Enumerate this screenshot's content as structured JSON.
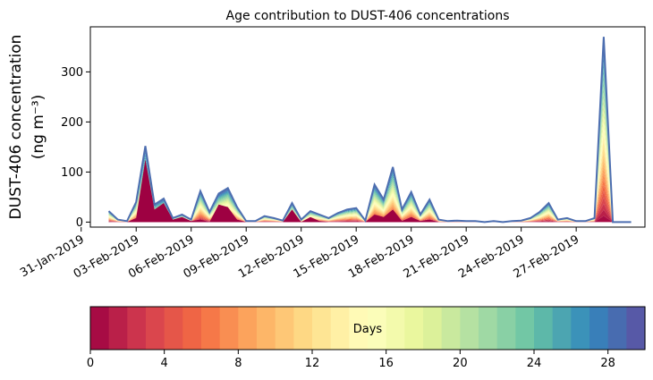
{
  "chart_data": {
    "type": "area",
    "title": "Age contribution to DUST-406 concentrations",
    "ylabel_line1": "DUST-406 concentration",
    "ylabel_line2": "(ng m⁻³)",
    "ylim": [
      -10,
      390
    ],
    "yticks": [
      0,
      100,
      200,
      300
    ],
    "xlim": [
      "2019-01-31T12:00",
      "2019-03-02T18:00"
    ],
    "xticks": [
      {
        "label": "31-Jan-2019",
        "date": "2019-01-31"
      },
      {
        "label": "03-Feb-2019",
        "date": "2019-02-03"
      },
      {
        "label": "06-Feb-2019",
        "date": "2019-02-06"
      },
      {
        "label": "09-Feb-2019",
        "date": "2019-02-09"
      },
      {
        "label": "12-Feb-2019",
        "date": "2019-02-12"
      },
      {
        "label": "15-Feb-2019",
        "date": "2019-02-15"
      },
      {
        "label": "18-Feb-2019",
        "date": "2019-02-18"
      },
      {
        "label": "21-Feb-2019",
        "date": "2019-02-21"
      },
      {
        "label": "24-Feb-2019",
        "date": "2019-02-24"
      },
      {
        "label": "27-Feb-2019",
        "date": "2019-02-27"
      }
    ],
    "x": [
      "2019-02-01T12:00",
      "2019-02-02T00:00",
      "2019-02-02T12:00",
      "2019-02-03T00:00",
      "2019-02-03T12:00",
      "2019-02-04T00:00",
      "2019-02-04T12:00",
      "2019-02-05T00:00",
      "2019-02-05T12:00",
      "2019-02-06T00:00",
      "2019-02-06T12:00",
      "2019-02-07T00:00",
      "2019-02-07T12:00",
      "2019-02-08T00:00",
      "2019-02-08T12:00",
      "2019-02-09T00:00",
      "2019-02-09T12:00",
      "2019-02-10T00:00",
      "2019-02-10T12:00",
      "2019-02-11T00:00",
      "2019-02-11T12:00",
      "2019-02-12T00:00",
      "2019-02-12T12:00",
      "2019-02-13T00:00",
      "2019-02-13T12:00",
      "2019-02-14T00:00",
      "2019-02-14T12:00",
      "2019-02-15T00:00",
      "2019-02-15T12:00",
      "2019-02-16T00:00",
      "2019-02-16T12:00",
      "2019-02-17T00:00",
      "2019-02-17T12:00",
      "2019-02-18T00:00",
      "2019-02-18T12:00",
      "2019-02-19T00:00",
      "2019-02-19T12:00",
      "2019-02-20T00:00",
      "2019-02-20T12:00",
      "2019-02-21T00:00",
      "2019-02-21T12:00",
      "2019-02-22T00:00",
      "2019-02-22T12:00",
      "2019-02-23T00:00",
      "2019-02-23T12:00",
      "2019-02-24T00:00",
      "2019-02-24T12:00",
      "2019-02-25T00:00",
      "2019-02-25T12:00",
      "2019-02-26T00:00",
      "2019-02-26T12:00",
      "2019-02-27T00:00",
      "2019-02-27T12:00",
      "2019-02-28T00:00",
      "2019-02-28T12:00",
      "2019-03-01T00:00",
      "2019-03-01T12:00",
      "2019-03-02T00:00"
    ],
    "total": [
      22,
      5,
      2,
      40,
      152,
      35,
      47,
      8,
      15,
      5,
      62,
      20,
      57,
      68,
      30,
      2,
      2,
      12,
      8,
      3,
      38,
      5,
      22,
      15,
      8,
      18,
      25,
      28,
      3,
      75,
      45,
      110,
      25,
      60,
      15,
      45,
      5,
      2,
      3,
      2,
      2,
      0,
      2,
      0,
      2,
      3,
      8,
      20,
      38,
      5,
      8,
      2,
      2,
      8,
      370,
      0,
      0,
      0
    ],
    "youngest": [
      0,
      0,
      0,
      8,
      125,
      25,
      38,
      5,
      10,
      2,
      5,
      0,
      35,
      30,
      5,
      0,
      0,
      0,
      0,
      0,
      25,
      0,
      10,
      2,
      0,
      0,
      0,
      0,
      0,
      15,
      10,
      25,
      2,
      10,
      2,
      5,
      0,
      0,
      0,
      0,
      0,
      0,
      0,
      0,
      0,
      0,
      0,
      0,
      0,
      0,
      0,
      0,
      0,
      0,
      0,
      0,
      0,
      0
    ],
    "colorbar": {
      "label": "Days",
      "min": 0,
      "max": 30,
      "bins": 30,
      "ticks": [
        0,
        4,
        8,
        12,
        16,
        20,
        24,
        28
      ],
      "colors": [
        "#9e0142",
        "#d53e4f",
        "#f46d43",
        "#fdae61",
        "#fee08b",
        "#ffffbf",
        "#e6f598",
        "#abdda4",
        "#66c2a5",
        "#3288bd",
        "#5e4fa2"
      ]
    },
    "outline_color": "#4d6eb0"
  }
}
